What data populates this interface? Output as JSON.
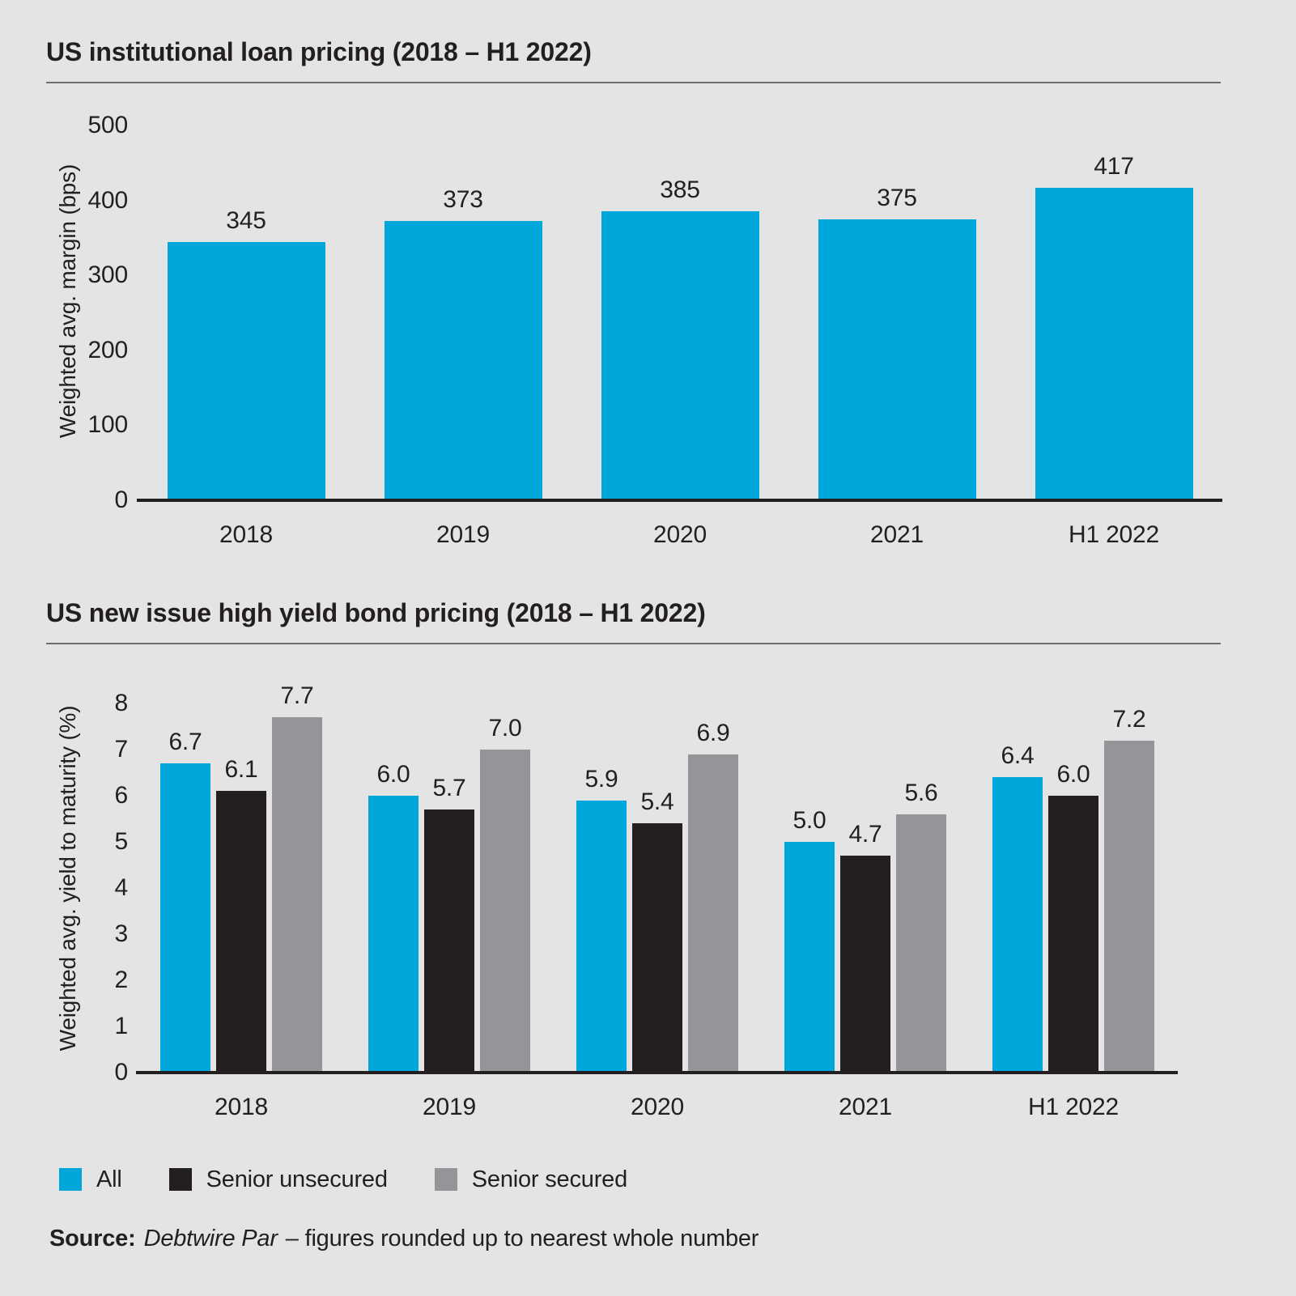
{
  "page": {
    "background_color": "#e4e4e4",
    "text_color": "#231f20"
  },
  "chart_data": [
    {
      "type": "bar",
      "title": "US institutional loan pricing (2018 – H1 2022)",
      "categories": [
        "2018",
        "2019",
        "2020",
        "2021",
        "H1 2022"
      ],
      "series": [
        {
          "name": "All",
          "color": "#00a7db",
          "values": [
            345,
            373,
            385,
            375,
            417
          ],
          "labels": [
            "345",
            "373",
            "385",
            "375",
            "417"
          ]
        }
      ],
      "xlabel": "",
      "ylabel": "Weighted avg. margin (bps)",
      "ylim": [
        0,
        500
      ],
      "yticks": [
        "0",
        "100",
        "200",
        "300",
        "400",
        "500"
      ],
      "grid": false,
      "legend": false
    },
    {
      "type": "bar",
      "title": "US new issue high yield bond pricing (2018 – H1 2022)",
      "categories": [
        "2018",
        "2019",
        "2020",
        "2021",
        "H1 2022"
      ],
      "series": [
        {
          "name": "All",
          "color": "#00a7db",
          "values": [
            6.7,
            6.0,
            5.9,
            5.0,
            6.4
          ],
          "labels": [
            "6.7",
            "6.0",
            "5.9",
            "5.0",
            "6.4"
          ]
        },
        {
          "name": "Senior unsecured",
          "color": "#231f20",
          "values": [
            6.1,
            5.7,
            5.4,
            4.7,
            6.0
          ],
          "labels": [
            "6.1",
            "5.7",
            "5.4",
            "4.7",
            "6.0"
          ]
        },
        {
          "name": "Senior secured",
          "color": "#939598",
          "values": [
            7.7,
            7.0,
            6.9,
            5.6,
            7.2
          ],
          "labels": [
            "7.7",
            "7.0",
            "6.9",
            "5.6",
            "7.2"
          ]
        }
      ],
      "xlabel": "",
      "ylabel": "Weighted avg. yield to maturity (%)",
      "ylim": [
        0,
        8
      ],
      "yticks": [
        "0",
        "1",
        "2",
        "3",
        "4",
        "5",
        "6",
        "7",
        "8"
      ],
      "grid": false,
      "legend": true,
      "legend_position": "bottom"
    }
  ],
  "legend": {
    "items": [
      {
        "label": "All",
        "color": "#00a7db"
      },
      {
        "label": "Senior unsecured",
        "color": "#231f20"
      },
      {
        "label": "Senior secured",
        "color": "#939598"
      }
    ]
  },
  "source": {
    "prefix": "Source:",
    "name": "Debtwire Par",
    "rest": "– figures rounded up to nearest whole number"
  }
}
